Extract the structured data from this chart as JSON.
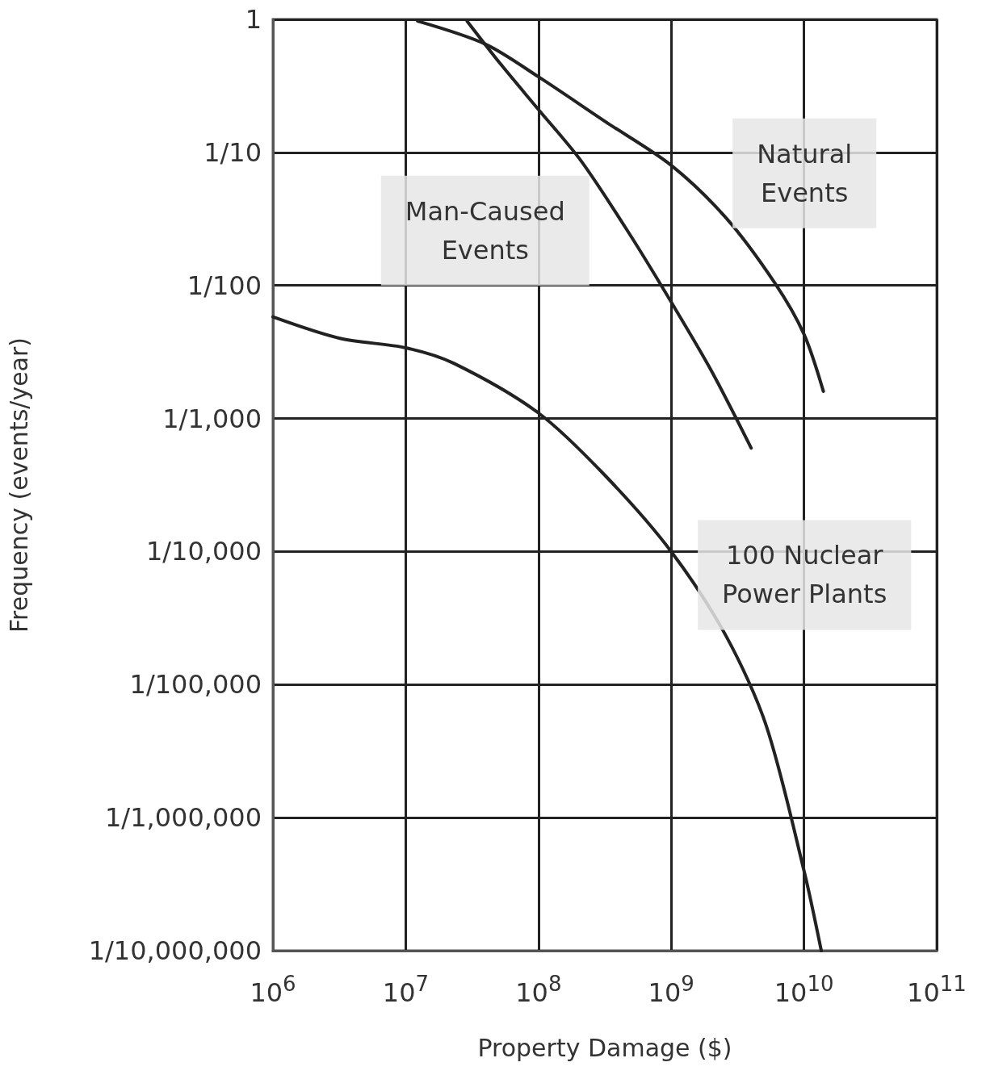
{
  "chart_data": {
    "type": "line",
    "xlabel": "Property Damage ($)",
    "ylabel": "Frequency (events/year)",
    "log": "xy",
    "grid": true,
    "legend": false,
    "marker": "none",
    "line_style": "solid",
    "xlim": [
      1000000,
      100000000000
    ],
    "xticks": [
      {
        "value": 1000000,
        "label": "10$^{6}$"
      },
      {
        "value": 10000000,
        "label": "10$^{7}$"
      },
      {
        "value": 100000000,
        "label": "10$^{8}$"
      },
      {
        "value": 1000000000,
        "label": "10$^{9}$"
      },
      {
        "value": 10000000000,
        "label": "10$^{10}$"
      },
      {
        "value": 100000000000,
        "label": "10$^{11}$"
      }
    ],
    "ylim": [
      1e-07,
      1
    ],
    "yticks": [
      {
        "value": 1e-07,
        "label": "1/10,000,000"
      },
      {
        "value": 1e-06,
        "label": "1/1,000,000"
      },
      {
        "value": 1e-05,
        "label": "1/100,000"
      },
      {
        "value": 0.0001,
        "label": "1/10,000"
      },
      {
        "value": 0.001,
        "label": "1/1,000"
      },
      {
        "value": 0.01,
        "label": "1/100"
      },
      {
        "value": 0.1,
        "label": "1/10"
      },
      1
    ],
    "series": [
      {
        "name": "Natural Events",
        "color": "#222222",
        "x": [
          12300000,
          40000000,
          100000000,
          320000000,
          1000000000,
          2600000000,
          6000000000,
          10000000000,
          14000000000
        ],
        "values": [
          0.97,
          0.65,
          0.37,
          0.17,
          0.08,
          0.032,
          0.0105,
          0.0043,
          0.0016
        ]
      },
      {
        "name": "Man-Caused Events",
        "color": "#222222",
        "x": [
          29000000,
          52000000,
          100000000,
          210000000,
          490000000,
          1000000000,
          2000000000,
          4000000000
        ],
        "values": [
          0.97,
          0.46,
          0.21,
          0.086,
          0.024,
          0.0075,
          0.0023,
          0.0006
        ]
      },
      {
        "name": "100 Nuclear Power Plants",
        "color": "#222222",
        "x": [
          1000000,
          3200000,
          10000000,
          23000000,
          100000000,
          320000000,
          1000000000,
          2600000000,
          5200000000,
          10000000000,
          13500000000
        ],
        "values": [
          0.0058,
          0.004,
          0.0034,
          0.0026,
          0.0011,
          0.00037,
          0.0001,
          2.3e-05,
          4.9e-06,
          4e-07,
          1e-07
        ]
      }
    ]
  }
}
